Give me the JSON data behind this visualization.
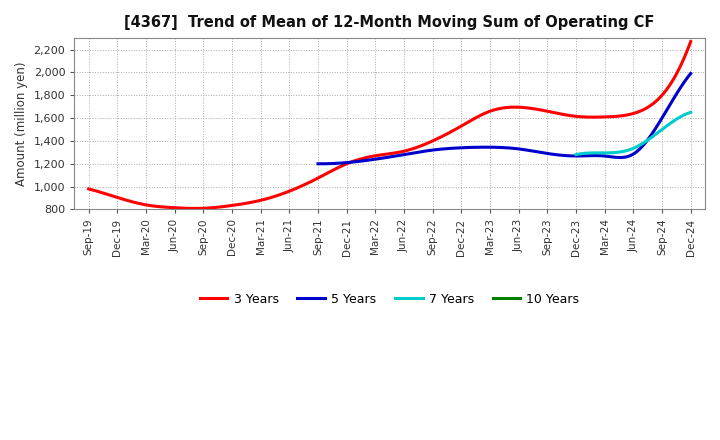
{
  "title": "[4367]  Trend of Mean of 12-Month Moving Sum of Operating CF",
  "ylabel": "Amount (million yen)",
  "ylim": [
    800,
    2300
  ],
  "yticks": [
    800,
    1000,
    1200,
    1400,
    1600,
    1800,
    2000,
    2200
  ],
  "background_color": "#ffffff",
  "grid_color": "#aaaaaa",
  "series": {
    "3 Years": {
      "color": "#ff0000",
      "points": [
        [
          0,
          980
        ],
        [
          1,
          905
        ],
        [
          2,
          840
        ],
        [
          3,
          815
        ],
        [
          4,
          810
        ],
        [
          5,
          835
        ],
        [
          6,
          880
        ],
        [
          7,
          960
        ],
        [
          8,
          1075
        ],
        [
          9,
          1200
        ],
        [
          10,
          1270
        ],
        [
          11,
          1310
        ],
        [
          12,
          1400
        ],
        [
          13,
          1530
        ],
        [
          14,
          1660
        ],
        [
          15,
          1695
        ],
        [
          16,
          1660
        ],
        [
          17,
          1615
        ],
        [
          18,
          1610
        ],
        [
          19,
          1640
        ],
        [
          20,
          1800
        ],
        [
          21,
          2270
        ]
      ]
    },
    "5 Years": {
      "color": "#0000cc",
      "points": [
        [
          8,
          1200
        ],
        [
          9,
          1210
        ],
        [
          10,
          1240
        ],
        [
          11,
          1280
        ],
        [
          12,
          1320
        ],
        [
          13,
          1340
        ],
        [
          14,
          1345
        ],
        [
          15,
          1330
        ],
        [
          16,
          1290
        ],
        [
          17,
          1268
        ],
        [
          18,
          1268
        ],
        [
          19,
          1285
        ],
        [
          20,
          1600
        ],
        [
          21,
          1990
        ]
      ]
    },
    "7 Years": {
      "color": "#00cccc",
      "points": [
        [
          17,
          1280
        ],
        [
          18,
          1295
        ],
        [
          19,
          1335
        ],
        [
          20,
          1500
        ],
        [
          21,
          1650
        ]
      ]
    },
    "10 Years": {
      "color": "#008000",
      "points": []
    }
  },
  "x_labels": [
    "Sep-19",
    "Dec-19",
    "Mar-20",
    "Jun-20",
    "Sep-20",
    "Dec-20",
    "Mar-21",
    "Jun-21",
    "Sep-21",
    "Dec-21",
    "Mar-22",
    "Jun-22",
    "Sep-22",
    "Dec-22",
    "Mar-23",
    "Jun-23",
    "Sep-23",
    "Dec-23",
    "Mar-24",
    "Jun-24",
    "Sep-24",
    "Dec-24"
  ],
  "legend_labels": [
    "3 Years",
    "5 Years",
    "7 Years",
    "10 Years"
  ],
  "legend_colors": [
    "#ff0000",
    "#0000cc",
    "#00cccc",
    "#008000"
  ]
}
